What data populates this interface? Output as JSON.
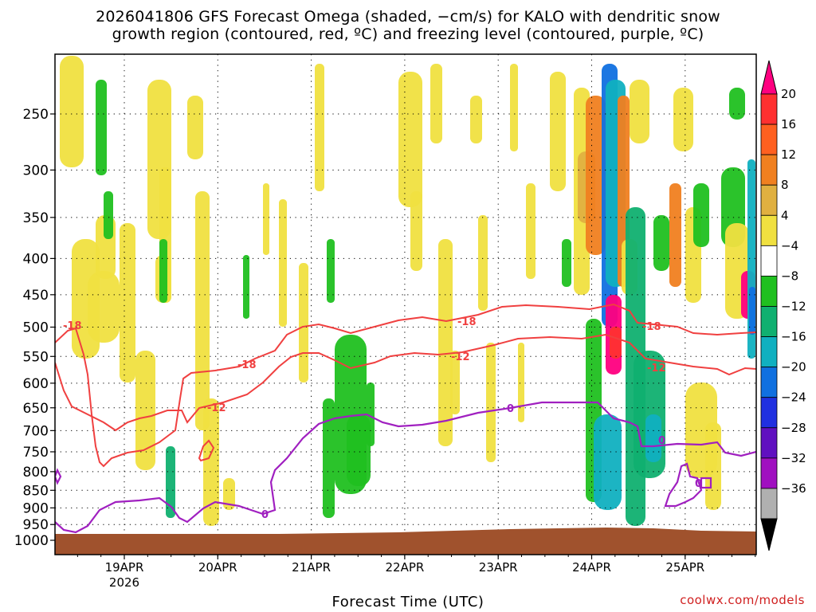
{
  "title_line1": "2026041806 GFS Forecast Omega (shaded, −cm/s) for KALO with dendritic snow",
  "title_line2": "growth region (contoured, red, ºC) and freezing level (contoured, purple, ºC)",
  "xaxis_title": "Forecast Time (UTC)",
  "credit": "coolwx.com/models",
  "chart_data": {
    "type": "heatmap",
    "y_axis": {
      "ticks": [
        250,
        300,
        350,
        400,
        450,
        500,
        550,
        600,
        650,
        700,
        750,
        800,
        850,
        900,
        950,
        1000
      ],
      "unit_hint": "hPa",
      "inverted": true
    },
    "x_axis": {
      "ticks": [
        "19APR",
        "20APR",
        "21APR",
        "22APR",
        "23APR",
        "24APR",
        "25APR"
      ],
      "year_label": "2026"
    },
    "colorbar": {
      "levels": [
        20,
        16,
        12,
        8,
        4,
        -4,
        -8,
        -12,
        -16,
        -20,
        -24,
        -28,
        -32,
        -36
      ],
      "colors": [
        "#ff0080",
        "#ff3030",
        "#ff6020",
        "#f08020",
        "#e0b040",
        "#f0e040",
        "#ffffff",
        "#20c020",
        "#10b070",
        "#10b0c0",
        "#1070e0",
        "#2030e0",
        "#6010c0",
        "#a010c0",
        "#b0b0b0",
        "#000000"
      ]
    },
    "contours": {
      "dgz_labels": [
        "-18",
        "-12"
      ],
      "freezing_label": "0",
      "colors": {
        "dgz": "#f04040",
        "freezing": "#a020c0",
        "ground": "#a0522d"
      }
    }
  }
}
